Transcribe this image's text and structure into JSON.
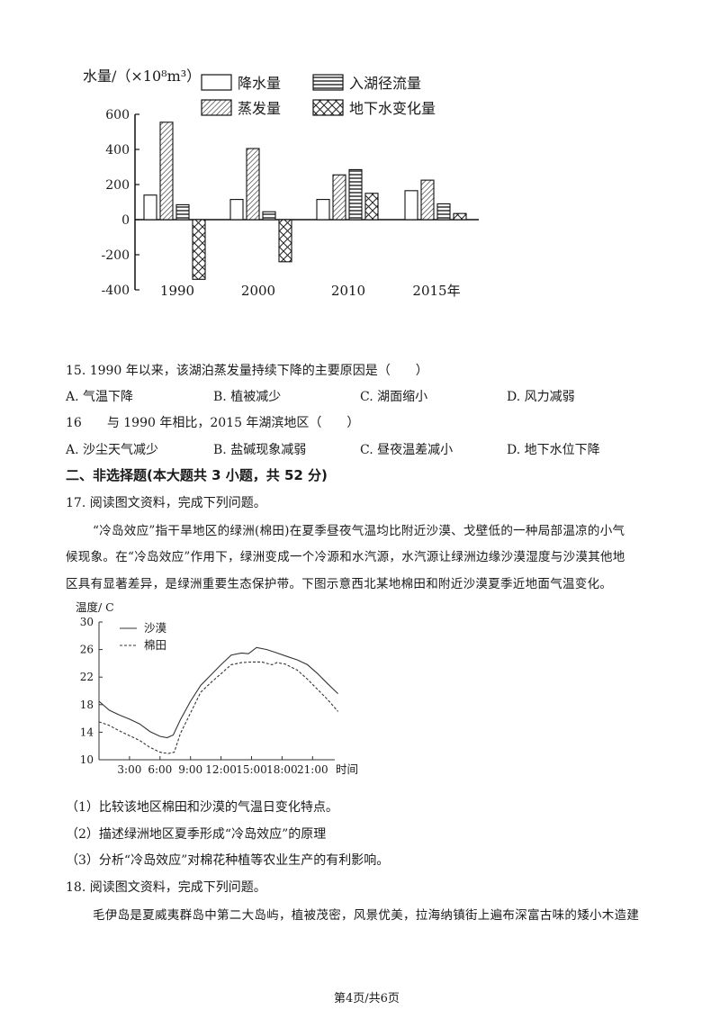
{
  "chart1": {
    "title": "水量/（×10⁸m³）",
    "chart_data": {
      "type": "bar",
      "categories": [
        "1990",
        "2000",
        "2010",
        "2015年"
      ],
      "series": [
        {
          "name": "降水量",
          "values": [
            140,
            115,
            115,
            165
          ],
          "pattern": "plain"
        },
        {
          "name": "蒸发量",
          "values": [
            555,
            405,
            255,
            225
          ],
          "pattern": "diagonal"
        },
        {
          "name": "入湖径流量",
          "values": [
            85,
            45,
            285,
            90
          ],
          "pattern": "horizontal"
        },
        {
          "name": "地下水变化量",
          "values": [
            -340,
            -240,
            150,
            35
          ],
          "pattern": "cross"
        }
      ],
      "ylim": [
        -400,
        600
      ],
      "yticks": [
        "600",
        "400",
        "200",
        "0",
        "-200",
        "-400"
      ]
    }
  },
  "q15": {
    "stem": "15. 1990 年以来，该湖泊蒸发量持续下降的主要原因是（　　）",
    "options": [
      "A. 气温下降",
      "B. 植被减少",
      "C. 湖面缩小",
      "D. 风力减弱"
    ]
  },
  "q16": {
    "stem": "16　　与 1990 年相比，2015 年湖滨地区（　　）",
    "options": [
      "A. 沙尘天气减少",
      "B. 盐碱现象减弱",
      "C. 昼夜温差减小",
      "D. 地下水位下降"
    ]
  },
  "section2": "二、非选择题(本大题共 3 小题，共 52 分)",
  "q17": {
    "intro": "17. 阅读图文资料，完成下列问题。",
    "para_lines": [
      "“冷岛效应”指干旱地区的绿洲(棉田)在夏季昼夜气温均比附近沙漠、戈壁低的一种局部温凉的小气",
      "候现象。在“冷岛效应”作用下，绿洲变成一个冷源和水汽源，水汽源让绿洲边缘沙漠湿度与沙漠其他地",
      "区具有显著差异，是绿洲重要生态保护带。下图示意西北某地棉田和附近沙漠夏季近地面气温变化。"
    ],
    "sub": [
      "（1）比较该地区棉田和沙漠的气温日变化特点。",
      "（2）描述绿洲地区夏季形成“冷岛效应”的原理",
      "（3）分析“冷岛效应”对棉花种植等农业生产的有利影响。"
    ]
  },
  "chart2": {
    "chart_data": {
      "type": "line",
      "ylabel": "温度/ C",
      "xlabel": "时间",
      "yticks": [
        "30",
        "26",
        "22",
        "18",
        "14",
        "10"
      ],
      "xticks": [
        "3:00",
        "6:00",
        "9:00",
        "12:00",
        "15:00",
        "18:00",
        "21:00"
      ],
      "ylim": [
        10,
        30
      ],
      "xlim": [
        0,
        24
      ],
      "series": [
        {
          "name": "沙漠",
          "style": "solid",
          "points": [
            [
              0,
              18.5
            ],
            [
              1,
              17.2
            ],
            [
              2,
              16.5
            ],
            [
              3,
              15.9
            ],
            [
              4,
              15.2
            ],
            [
              5,
              14.1
            ],
            [
              6,
              13.4
            ],
            [
              6.7,
              13.2
            ],
            [
              7.3,
              13.6
            ],
            [
              8,
              15.8
            ],
            [
              9,
              18.5
            ],
            [
              10,
              20.8
            ],
            [
              11,
              22.3
            ],
            [
              12,
              23.8
            ],
            [
              13,
              25.2
            ],
            [
              14,
              25.5
            ],
            [
              14.7,
              25.4
            ],
            [
              15.5,
              26.3
            ],
            [
              16.5,
              26.0
            ],
            [
              17.5,
              25.5
            ],
            [
              18.5,
              25.0
            ],
            [
              19.5,
              24.5
            ],
            [
              20.5,
              23.8
            ],
            [
              21.5,
              22.5
            ],
            [
              22.5,
              21.0
            ],
            [
              23.5,
              19.6
            ]
          ]
        },
        {
          "name": "棉田",
          "style": "dashed",
          "points": [
            [
              0,
              15.5
            ],
            [
              1,
              15.0
            ],
            [
              2,
              14.2
            ],
            [
              3,
              13.5
            ],
            [
              4,
              12.8
            ],
            [
              5,
              11.8
            ],
            [
              6,
              11.1
            ],
            [
              6.8,
              10.9
            ],
            [
              7.4,
              11.1
            ],
            [
              8,
              13.8
            ],
            [
              9,
              16.8
            ],
            [
              10,
              19.8
            ],
            [
              11,
              21.2
            ],
            [
              12,
              22.5
            ],
            [
              13,
              23.8
            ],
            [
              14,
              24.1
            ],
            [
              15,
              24.2
            ],
            [
              16,
              24.2
            ],
            [
              17,
              23.8
            ],
            [
              17.5,
              24.1
            ],
            [
              18.3,
              23.9
            ],
            [
              19.5,
              23.0
            ],
            [
              20.5,
              21.7
            ],
            [
              21.5,
              20.2
            ],
            [
              22.5,
              18.7
            ],
            [
              23.5,
              17.0
            ]
          ]
        }
      ]
    }
  },
  "q18": {
    "intro": "18. 阅读图文资料，完成下列问题。",
    "para": "毛伊岛是夏威夷群岛中第二大岛屿，植被茂密，风景优美，拉海纳镇街上遍布深富古味的矮小木造建"
  },
  "footer": "第4页/共6页"
}
